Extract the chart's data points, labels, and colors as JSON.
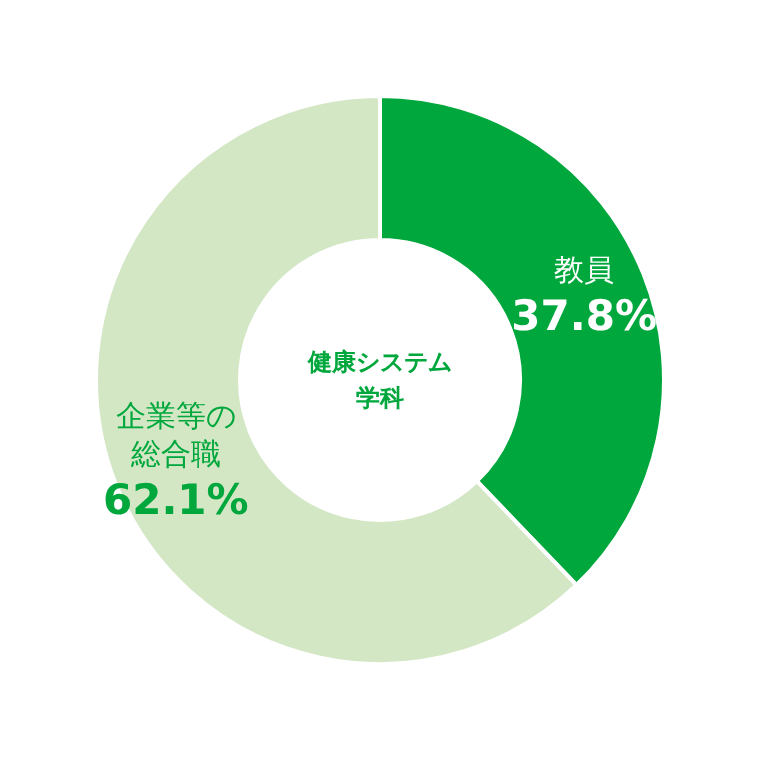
{
  "chart_data": {
    "type": "donut",
    "title": "健康システム学科",
    "categories": [
      "教員",
      "企業等の総合職"
    ],
    "values": [
      37.8,
      62.1
    ],
    "value_labels": [
      "37.8%",
      "62.1%"
    ],
    "colors": [
      "#00a73c",
      "#d3e7c5"
    ]
  }
}
